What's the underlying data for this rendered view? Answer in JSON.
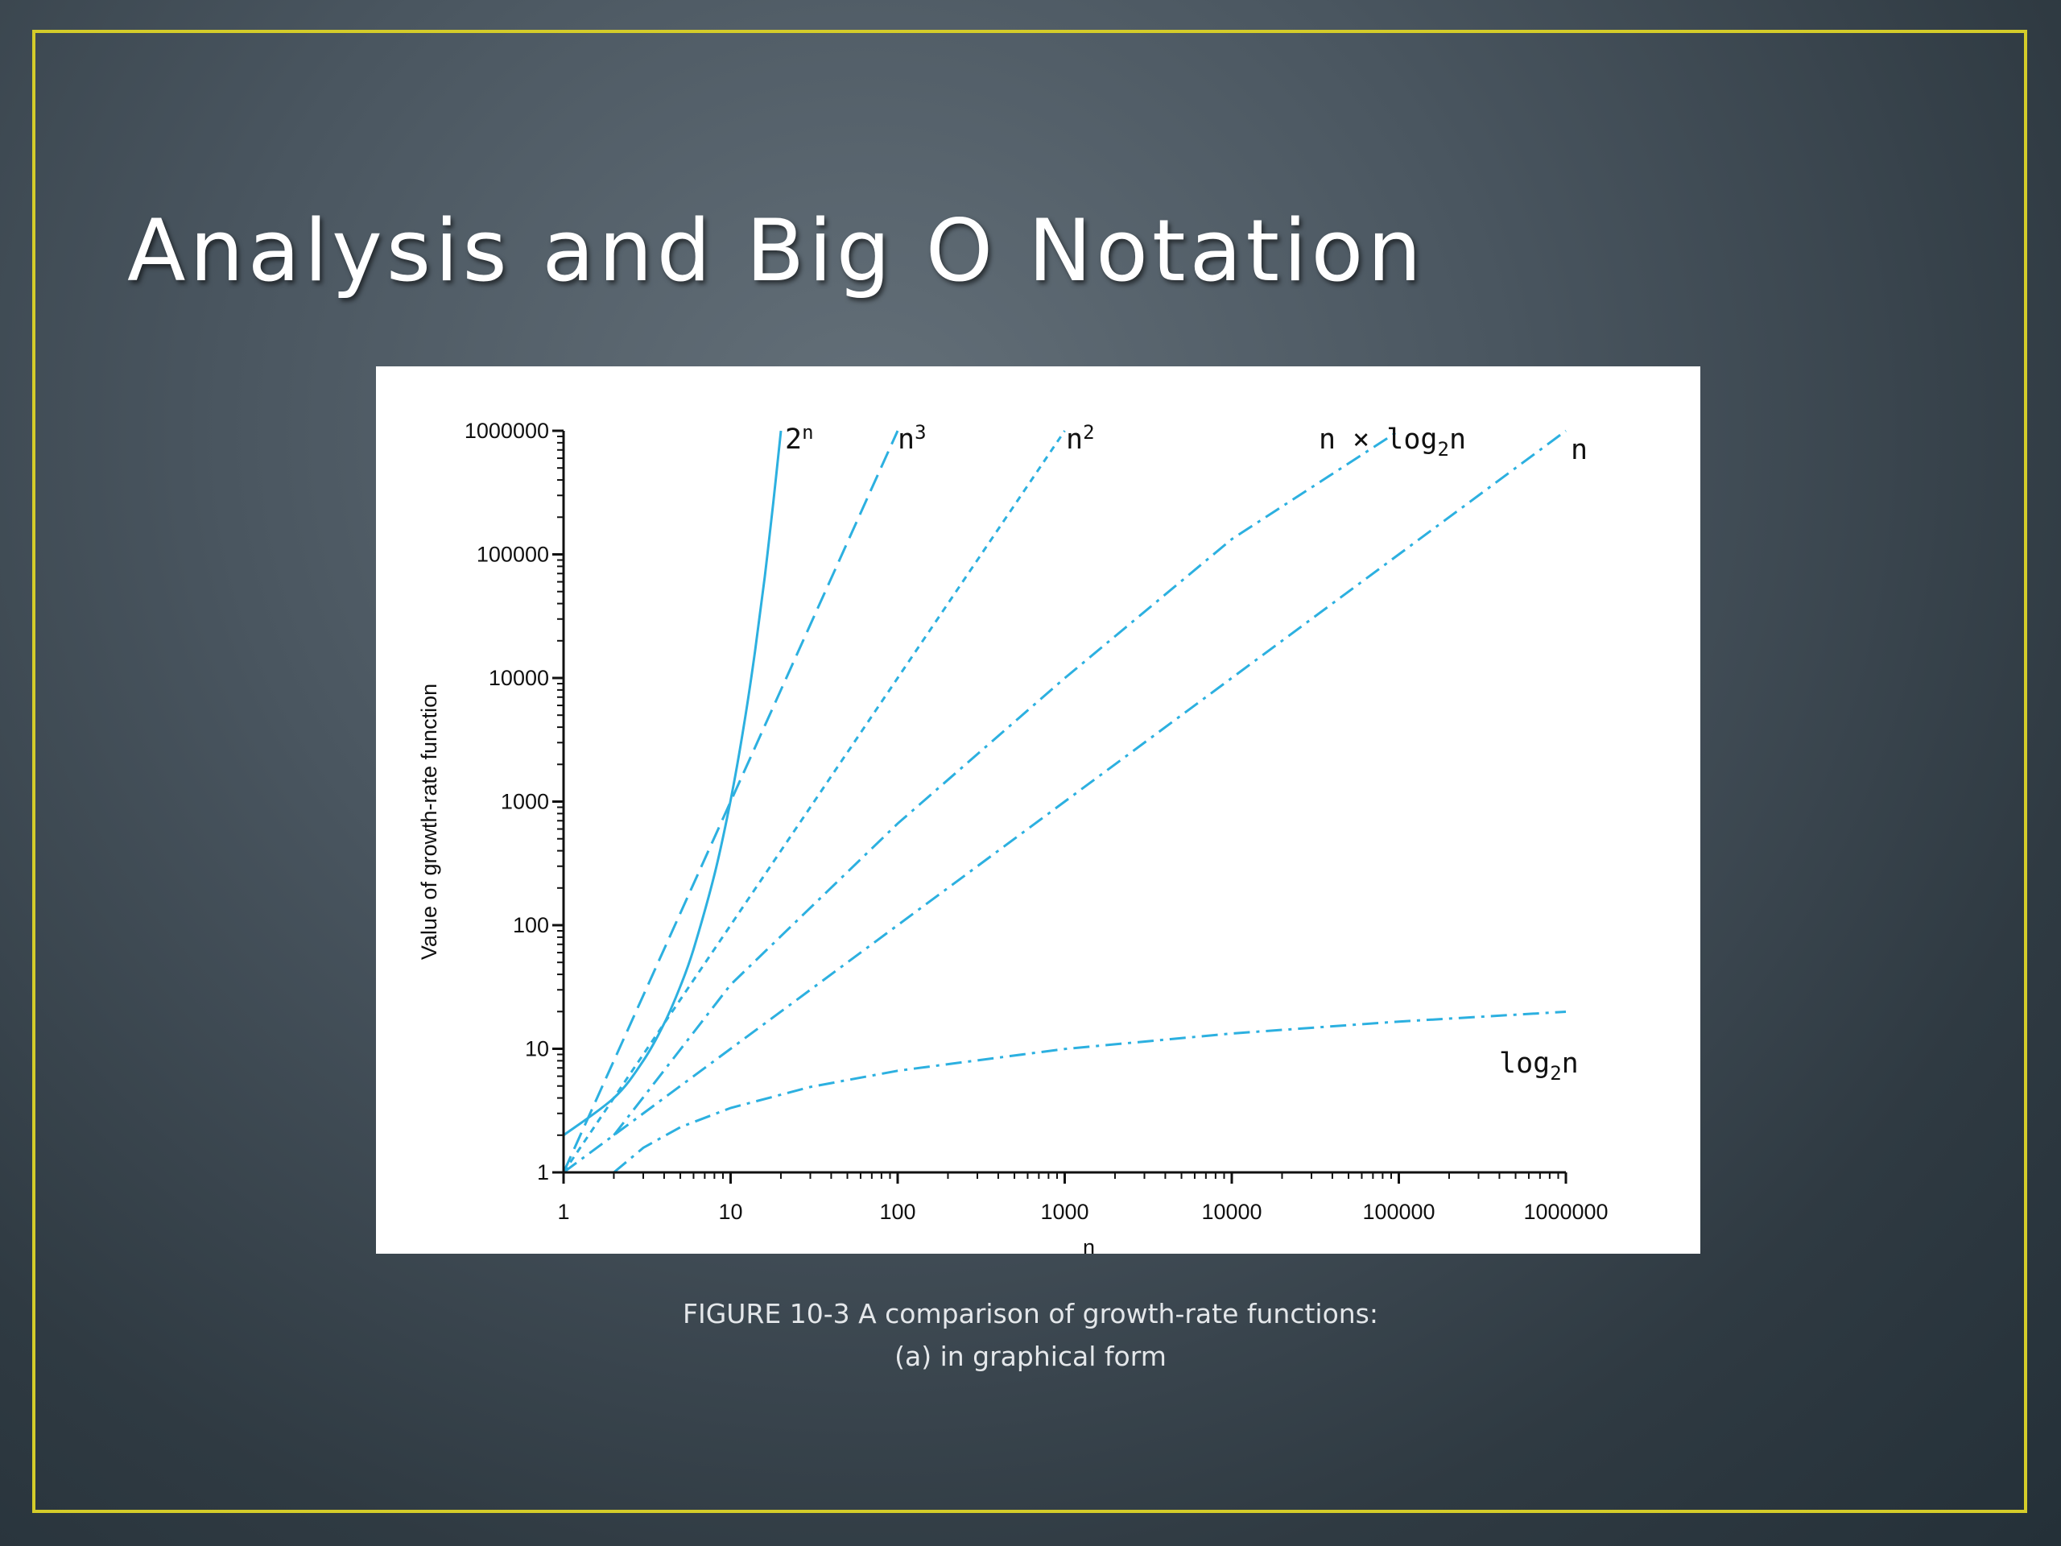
{
  "slide": {
    "title": "Analysis and Big O Notation",
    "caption_line1": "FIGURE 10-3 A comparison of growth-rate functions:",
    "caption_line2": "(a) in graphical form"
  },
  "colors": {
    "series": "#2cb0e0",
    "frame": "#d4cc2a",
    "axis": "#111111"
  },
  "chart_data": {
    "type": "line",
    "xlabel": "n",
    "ylabel": "Value of growth-rate function",
    "xscale": "log",
    "yscale": "log",
    "xlim": [
      1,
      1000000
    ],
    "ylim": [
      1,
      1000000
    ],
    "xticks": [
      "1",
      "10",
      "100",
      "1000",
      "10000",
      "100000",
      "1000000"
    ],
    "yticks": [
      "1",
      "10",
      "100",
      "1000",
      "10000",
      "100000",
      "1000000"
    ],
    "grid": false,
    "legend": "none",
    "series": [
      {
        "name": "2ⁿ",
        "base": "2",
        "sup": "n",
        "style": "solid",
        "x": [
          1,
          2,
          3,
          4,
          5,
          6,
          8,
          10,
          12,
          14,
          16,
          18,
          20
        ],
        "y": [
          2,
          4,
          8,
          16,
          32,
          64,
          256,
          1024,
          4096,
          16384,
          65536,
          262144,
          1000000
        ]
      },
      {
        "name": "n³",
        "base": "n",
        "sup": "3",
        "style": "dashed",
        "x": [
          1,
          10,
          100
        ],
        "y": [
          1,
          1000,
          1000000
        ]
      },
      {
        "name": "n²",
        "base": "n",
        "sup": "2",
        "style": "dotted",
        "x": [
          1,
          10,
          100,
          1000
        ],
        "y": [
          1,
          100,
          10000,
          1000000
        ]
      },
      {
        "name": "n × log₂n",
        "base": "n × log",
        "sub": "2",
        "tail": "n",
        "style": "dashdot",
        "x": [
          2,
          10,
          100,
          1000,
          10000,
          100000
        ],
        "y": [
          2,
          33,
          664,
          9966,
          132877,
          1000000
        ]
      },
      {
        "name": "n",
        "base": "n",
        "style": "dashdot",
        "x": [
          1,
          1000000
        ],
        "y": [
          1,
          1000000
        ]
      },
      {
        "name": "log₂n",
        "base": "log",
        "sub": "2",
        "tail": "n",
        "style": "dashdot",
        "x": [
          2,
          3,
          5,
          10,
          30,
          100,
          1000,
          10000,
          100000,
          1000000
        ],
        "y": [
          1,
          1.58,
          2.32,
          3.32,
          4.91,
          6.64,
          9.97,
          13.29,
          16.61,
          19.93
        ]
      }
    ]
  }
}
